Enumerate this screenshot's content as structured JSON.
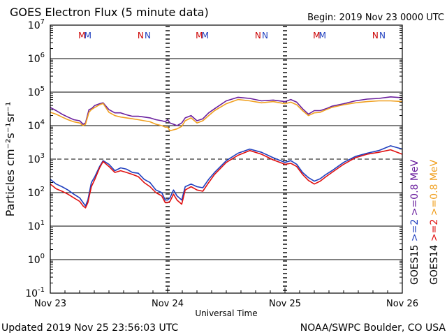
{
  "chart_data": {
    "type": "line",
    "title": "GOES Electron Flux (5 minute data)",
    "begin_label": "Begin: 2019 Nov 23 0000 UTC",
    "xlabel": "Universal Time",
    "ylabel": "Particles cm⁻²s⁻¹sr⁻¹",
    "yscale": "log",
    "ylim": [
      0.1,
      10000000
    ],
    "y_tick_labels": [
      {
        "base": "10",
        "exp": "-1",
        "value": 0.1
      },
      {
        "base": "10",
        "exp": "0",
        "value": 1
      },
      {
        "base": "10",
        "exp": "1",
        "value": 10
      },
      {
        "base": "10",
        "exp": "2",
        "value": 100
      },
      {
        "base": "10",
        "exp": "3",
        "value": 1000
      },
      {
        "base": "10",
        "exp": "4",
        "value": 10000
      },
      {
        "base": "10",
        "exp": "5",
        "value": 100000
      },
      {
        "base": "10",
        "exp": "6",
        "value": 1000000
      },
      {
        "base": "10",
        "exp": "7",
        "value": 10000000
      }
    ],
    "x_tick_labels": [
      "Nov 23",
      "Nov 24",
      "Nov 25",
      "Nov 26"
    ],
    "xlim_days": [
      0,
      3
    ],
    "threshold": {
      "value": 1000,
      "style": "dashed"
    },
    "day_markers": [
      1,
      2
    ],
    "grid": "horizontal decades",
    "markers": [
      {
        "label": "M",
        "day": 0.27,
        "color": "#cc0000"
      },
      {
        "label": "M",
        "day": 0.32,
        "color": "#1f3fbf"
      },
      {
        "label": "N",
        "day": 0.77,
        "color": "#cc0000"
      },
      {
        "label": "N",
        "day": 0.83,
        "color": "#1f3fbf"
      },
      {
        "label": "M",
        "day": 1.27,
        "color": "#cc0000"
      },
      {
        "label": "M",
        "day": 1.32,
        "color": "#1f3fbf"
      },
      {
        "label": "N",
        "day": 1.77,
        "color": "#cc0000"
      },
      {
        "label": "N",
        "day": 1.83,
        "color": "#1f3fbf"
      },
      {
        "label": "M",
        "day": 2.27,
        "color": "#cc0000"
      },
      {
        "label": "M",
        "day": 2.32,
        "color": "#1f3fbf"
      },
      {
        "label": "N",
        "day": 2.77,
        "color": "#cc0000"
      },
      {
        "label": "N",
        "day": 2.83,
        "color": "#1f3fbf"
      }
    ],
    "legend": {
      "placement": "right",
      "columns": [
        {
          "satellite": "GOES15",
          "entries": [
            {
              "label": ">=2",
              "color": "#1f3fbf"
            },
            {
              "label": ">=0.8 MeV",
              "color": "#6a1f9e"
            }
          ]
        },
        {
          "satellite": "GOES14",
          "entries": [
            {
              "label": ">=2",
              "color": "#e01010"
            },
            {
              "label": ">=0.8 MeV",
              "color": "#f0a020"
            }
          ]
        }
      ]
    },
    "series": [
      {
        "color": "#6a1f9e",
        "x": [
          0,
          0.05,
          0.1,
          0.15,
          0.2,
          0.25,
          0.28,
          0.3,
          0.33,
          0.35,
          0.38,
          0.42,
          0.45,
          0.5,
          0.55,
          0.6,
          0.65,
          0.7,
          0.75,
          0.8,
          0.85,
          0.9,
          0.95,
          0.98,
          1.0,
          1.02,
          1.05,
          1.08,
          1.12,
          1.15,
          1.2,
          1.25,
          1.3,
          1.35,
          1.4,
          1.5,
          1.6,
          1.7,
          1.8,
          1.9,
          2.0,
          2.05,
          2.1,
          2.15,
          2.2,
          2.25,
          2.3,
          2.35,
          2.4,
          2.5,
          2.6,
          2.7,
          2.8,
          2.9,
          3.0
        ],
        "y": [
          35000,
          28000,
          22000,
          18000,
          15000,
          14000,
          11000,
          12000,
          30000,
          32000,
          40000,
          45000,
          48000,
          30000,
          24000,
          24000,
          21000,
          19000,
          19000,
          18000,
          17000,
          15000,
          14000,
          13000,
          15000,
          12000,
          11000,
          10000,
          12000,
          17000,
          20000,
          14000,
          16000,
          24000,
          32000,
          55000,
          70000,
          65000,
          55000,
          58000,
          52000,
          60000,
          50000,
          32000,
          22000,
          28000,
          28000,
          32000,
          38000,
          45000,
          55000,
          62000,
          65000,
          72000,
          68000
        ]
      },
      {
        "color": "#f0a020",
        "x": [
          0,
          0.05,
          0.1,
          0.15,
          0.2,
          0.25,
          0.28,
          0.3,
          0.33,
          0.35,
          0.38,
          0.42,
          0.45,
          0.5,
          0.55,
          0.6,
          0.65,
          0.7,
          0.75,
          0.8,
          0.85,
          0.9,
          0.95,
          0.98,
          1.0,
          1.02,
          1.05,
          1.08,
          1.12,
          1.15,
          1.2,
          1.25,
          1.3,
          1.35,
          1.4,
          1.5,
          1.6,
          1.7,
          1.8,
          1.9,
          2.0,
          2.05,
          2.1,
          2.15,
          2.2,
          2.25,
          2.3,
          2.35,
          2.4,
          2.5,
          2.6,
          2.7,
          2.8,
          2.9,
          3.0
        ],
        "y": [
          25000,
          22000,
          18000,
          15000,
          13000,
          12000,
          10000,
          11000,
          25000,
          30000,
          35000,
          42000,
          46000,
          25000,
          20000,
          18000,
          17000,
          16000,
          15000,
          14000,
          13000,
          11000,
          10000,
          9000,
          9000,
          7000,
          7500,
          8000,
          9500,
          14000,
          17000,
          12000,
          14000,
          20000,
          28000,
          45000,
          60000,
          55000,
          48000,
          52000,
          45000,
          50000,
          42000,
          28000,
          20000,
          24000,
          25000,
          30000,
          35000,
          42000,
          48000,
          52000,
          55000,
          55000,
          52000
        ]
      },
      {
        "color": "#1f3fbf",
        "x": [
          0,
          0.05,
          0.1,
          0.15,
          0.2,
          0.25,
          0.28,
          0.3,
          0.32,
          0.35,
          0.38,
          0.42,
          0.45,
          0.5,
          0.55,
          0.6,
          0.65,
          0.7,
          0.75,
          0.8,
          0.85,
          0.9,
          0.95,
          0.98,
          1.0,
          1.02,
          1.05,
          1.08,
          1.12,
          1.15,
          1.2,
          1.25,
          1.3,
          1.35,
          1.4,
          1.5,
          1.6,
          1.7,
          1.8,
          1.9,
          2.0,
          2.05,
          2.1,
          2.15,
          2.2,
          2.25,
          2.3,
          2.35,
          2.4,
          2.5,
          2.6,
          2.7,
          2.8,
          2.9,
          3.0
        ],
        "y": [
          250,
          180,
          150,
          120,
          90,
          70,
          50,
          40,
          60,
          200,
          300,
          600,
          900,
          700,
          450,
          550,
          500,
          400,
          380,
          250,
          200,
          120,
          100,
          60,
          60,
          70,
          120,
          80,
          60,
          150,
          180,
          150,
          140,
          250,
          400,
          900,
          1500,
          2000,
          1600,
          1100,
          800,
          900,
          700,
          400,
          280,
          220,
          260,
          350,
          450,
          800,
          1200,
          1500,
          1800,
          2500,
          2000
        ]
      },
      {
        "color": "#e01010",
        "x": [
          0,
          0.05,
          0.1,
          0.15,
          0.2,
          0.25,
          0.28,
          0.3,
          0.32,
          0.35,
          0.38,
          0.42,
          0.45,
          0.5,
          0.55,
          0.6,
          0.65,
          0.7,
          0.75,
          0.8,
          0.85,
          0.9,
          0.95,
          0.98,
          1.0,
          1.02,
          1.05,
          1.08,
          1.12,
          1.15,
          1.2,
          1.25,
          1.3,
          1.35,
          1.4,
          1.5,
          1.6,
          1.7,
          1.8,
          1.9,
          2.0,
          2.05,
          2.1,
          2.15,
          2.2,
          2.25,
          2.3,
          2.35,
          2.4,
          2.5,
          2.6,
          2.7,
          2.8,
          2.9,
          3.0
        ],
        "y": [
          180,
          130,
          110,
          90,
          70,
          55,
          40,
          35,
          50,
          150,
          250,
          550,
          850,
          600,
          400,
          450,
          400,
          350,
          300,
          200,
          150,
          100,
          80,
          50,
          50,
          55,
          90,
          60,
          45,
          120,
          150,
          120,
          110,
          200,
          350,
          800,
          1300,
          1800,
          1400,
          950,
          700,
          750,
          600,
          350,
          230,
          180,
          220,
          300,
          400,
          700,
          1100,
          1400,
          1600,
          1900,
          1400
        ]
      }
    ]
  },
  "footer": {
    "updated": "Updated 2019 Nov 25 23:56:03 UTC",
    "credit": "NOAA/SWPC Boulder, CO USA"
  }
}
